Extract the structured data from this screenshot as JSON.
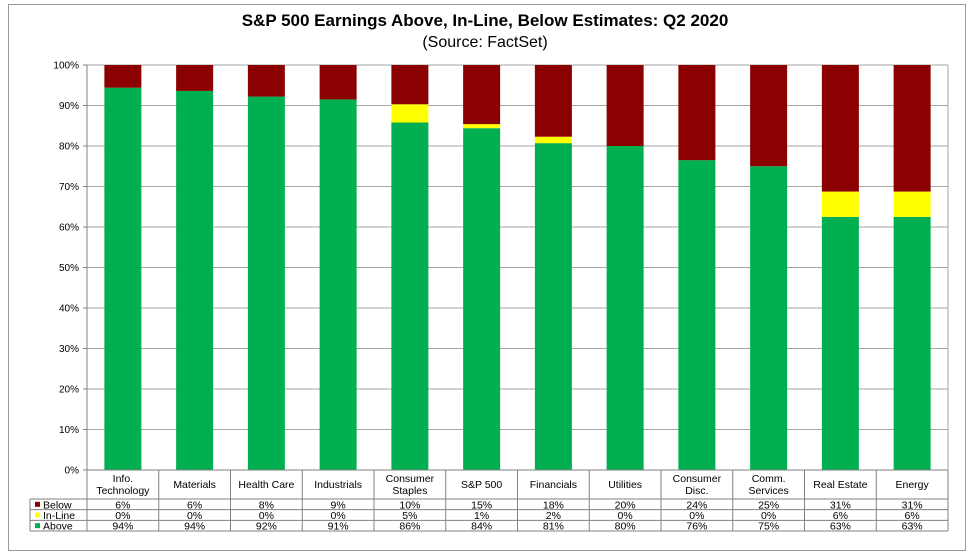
{
  "chart_data": {
    "type": "bar",
    "stacked": true,
    "title": "S&P 500 Earnings Above, In-Line, Below Estimates: Q2 2020",
    "subtitle": "(Source: FactSet)",
    "categories": [
      [
        "Info.",
        "Technology"
      ],
      [
        "Materials"
      ],
      [
        "Health Care"
      ],
      [
        "Industrials"
      ],
      [
        "Consumer",
        "Staples"
      ],
      [
        "S&P 500"
      ],
      [
        "Financials"
      ],
      [
        "Utilities"
      ],
      [
        "Consumer",
        "Disc."
      ],
      [
        "Comm.",
        "Services"
      ],
      [
        "Real Estate"
      ],
      [
        "Energy"
      ]
    ],
    "series": [
      {
        "name": "Below",
        "color": "#8b0000",
        "values": [
          6,
          6,
          8,
          9,
          10,
          15,
          18,
          20,
          24,
          25,
          31,
          31
        ],
        "labels": [
          "6%",
          "6%",
          "8%",
          "9%",
          "10%",
          "15%",
          "18%",
          "20%",
          "24%",
          "25%",
          "31%",
          "31%"
        ],
        "exact": [
          5.6,
          6.4,
          7.8,
          8.5,
          9.7,
          14.6,
          17.7,
          20,
          23.5,
          25,
          31.25,
          31.25
        ]
      },
      {
        "name": "In-Line",
        "color": "#ffff00",
        "values": [
          0,
          0,
          0,
          0,
          5,
          1,
          2,
          0,
          0,
          0,
          6,
          6
        ],
        "labels": [
          "0%",
          "0%",
          "0%",
          "0%",
          "5%",
          "1%",
          "2%",
          "0%",
          "0%",
          "0%",
          "6%",
          "6%"
        ],
        "exact": [
          0,
          0,
          0,
          0,
          4.5,
          1.0,
          1.6,
          0,
          0,
          0,
          6.25,
          6.25
        ]
      },
      {
        "name": "Above",
        "color": "#00b050",
        "values": [
          94,
          94,
          92,
          91,
          86,
          84,
          81,
          80,
          76,
          75,
          63,
          63
        ],
        "labels": [
          "94%",
          "94%",
          "92%",
          "91%",
          "86%",
          "84%",
          "81%",
          "80%",
          "76%",
          "75%",
          "63%",
          "63%"
        ],
        "exact": [
          94.4,
          93.6,
          92.2,
          91.5,
          85.8,
          84.4,
          80.7,
          80,
          76.5,
          75,
          62.5,
          62.5
        ]
      }
    ],
    "y_ticks": [
      "0%",
      "10%",
      "20%",
      "30%",
      "40%",
      "50%",
      "60%",
      "70%",
      "80%",
      "90%",
      "100%"
    ],
    "ylim": [
      0,
      100
    ],
    "grid": true,
    "legend": "data-table-left"
  }
}
